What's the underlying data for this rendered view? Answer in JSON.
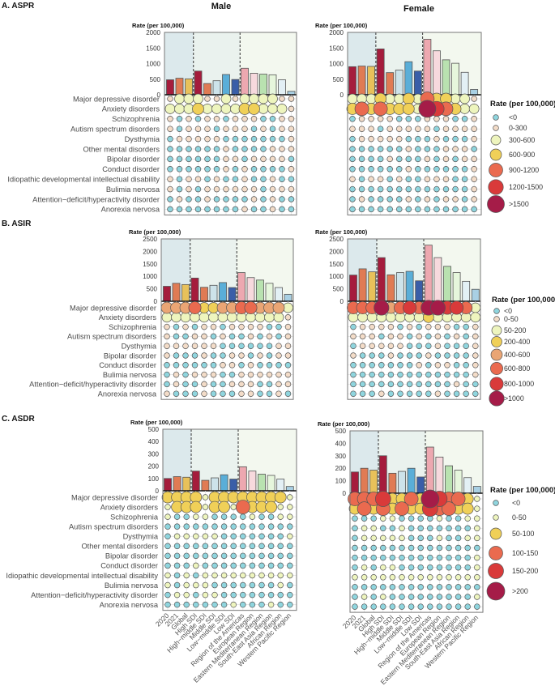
{
  "headers": {
    "male": "Male",
    "female": "Female"
  },
  "categories": [
    "2020",
    "2021",
    "Global",
    "High SDI",
    "High−middle SDI",
    "Middle SDI",
    "Low−middle SDI",
    "Low SDI",
    "Region of the Americas",
    "European Region",
    "Eastern Mediterranean Region",
    "South-East Asia Region",
    "African Region",
    "Western Pacific Region"
  ],
  "bar_colors": [
    "#a51c3c",
    "#e07b54",
    "#e8c15a",
    "#a51c3c",
    "#e07b54",
    "#cde3ea",
    "#5aaed8",
    "#3a5ea8",
    "#eda8b0",
    "#f7d9dd",
    "#b9e2b0",
    "#e6f6dc",
    "#e3f0f5",
    "#a9d0e4"
  ],
  "group_backgrounds": [
    "#dce9ec",
    "#eaf2ee",
    "#f3f8ef"
  ],
  "panels": [
    {
      "title": "A. ASPR",
      "ylabel": "Rate (per 100,000)",
      "ylim": [
        0,
        2000
      ],
      "yticks": [
        "0",
        "500",
        "1000",
        "1500",
        "2000"
      ],
      "rows": [
        "Major depressive disorder",
        "Anxiety disorders",
        "Schizophrenia",
        "Autism spectrum disorders",
        "Dysthymia",
        "Other mental disorders",
        "Bipolar disorder",
        "Conduct disorder",
        "Idiopathic developmental intellectual disability",
        "Bulimia nervosa",
        "Attention−deficit/hyperactivity disorder",
        "Anorexia nervosa"
      ],
      "legend_title": "Rate (per 100,000)",
      "legend": [
        "<0",
        "0-300",
        "300-600",
        "600-900",
        "900-1200",
        "1200-1500",
        ">1500"
      ],
      "legend_colors": [
        "#8fd5de",
        "#f3dcc8",
        "#eef5be",
        "#f0d058",
        "#ea6a4f",
        "#d93a3a",
        "#a51c48"
      ]
    },
    {
      "title": "B. ASIR",
      "ylabel": "Rate (per 100,000)",
      "ylim": [
        0,
        2500
      ],
      "yticks": [
        "0",
        "500",
        "1000",
        "1500",
        "2000",
        "2500"
      ],
      "rows": [
        "Major depressive disorder",
        "Anxiety disorders",
        "Schizophrenia",
        "Autism spectrum disorders",
        "Dysthymia",
        "Bipolar disorder",
        "Conduct disorder",
        "Bulimia nervosa",
        "Attention−deficit/hyperactivity disorder",
        "Anorexia nervosa"
      ],
      "legend_title": "Rate (per 100,000)",
      "legend": [
        "<0",
        "0-50",
        "50-200",
        "200-400",
        "400-600",
        "600-800",
        "800-1000",
        ">1000"
      ],
      "legend_colors": [
        "#8fd5de",
        "#f3dcc8",
        "#eef5be",
        "#f0d058",
        "#eaa574",
        "#ea6a4f",
        "#d93a3a",
        "#a51c48"
      ]
    },
    {
      "title": "C. ASDR",
      "ylabel": "Rate (per 100,000)",
      "ylim": [
        0,
        500
      ],
      "yticks": [
        "0",
        "100",
        "200",
        "300",
        "400",
        "500"
      ],
      "rows": [
        "Major depressive disorder",
        "Anxiety disorders",
        "Schizophrenia",
        "Autism spectrum disorders",
        "Dysthymia",
        "Other mental disorders",
        "Bipolar disorder",
        "Conduct disorder",
        "Idiopathic developmental intellectual disability",
        "Bulimia nervosa",
        "Attention−deficit/hyperactivity disorder",
        "Anorexia nervosa"
      ],
      "legend_title": "Rate (per 100,000)",
      "legend": [
        "<0",
        "0-50",
        "50-100",
        "100-150",
        "150-200",
        ">200"
      ],
      "legend_colors": [
        "#8fd5de",
        "#eef5be",
        "#f0d058",
        "#ea6a4f",
        "#d93a3a",
        "#a51c48"
      ]
    }
  ],
  "chart_data": [
    {
      "type": "bar",
      "panel": "A. ASPR",
      "sex": "Male",
      "ylabel": "Rate (per 100,000)",
      "ylim": [
        0,
        2000
      ],
      "values": [
        480,
        530,
        510,
        760,
        360,
        450,
        650,
        490,
        850,
        690,
        660,
        640,
        480,
        110
      ],
      "dot_bins": [
        [
          1,
          2,
          2,
          2,
          1,
          1,
          2,
          1,
          2,
          2,
          2,
          2,
          1,
          1
        ],
        [
          2,
          2,
          2,
          3,
          2,
          2,
          2,
          2,
          3,
          3,
          2,
          2,
          2,
          1
        ],
        [
          1,
          0,
          1,
          0,
          1,
          1,
          0,
          1,
          1,
          1,
          0,
          0,
          1,
          1
        ],
        [
          1,
          0,
          1,
          1,
          1,
          0,
          1,
          1,
          1,
          0,
          1,
          0,
          1,
          1
        ],
        [
          0,
          1,
          1,
          1,
          1,
          1,
          0,
          0,
          0,
          0,
          0,
          0,
          0,
          1
        ],
        [
          0,
          0,
          0,
          0,
          0,
          0,
          1,
          0,
          0,
          0,
          0,
          1,
          1,
          1
        ],
        [
          0,
          0,
          0,
          0,
          0,
          0,
          1,
          1,
          0,
          1,
          1,
          1,
          1,
          0
        ],
        [
          0,
          0,
          0,
          0,
          0,
          0,
          1,
          0,
          1,
          0,
          0,
          0,
          0,
          1
        ],
        [
          1,
          0,
          1,
          1,
          0,
          1,
          0,
          0,
          1,
          0,
          0,
          1,
          0,
          0
        ],
        [
          1,
          0,
          1,
          0,
          1,
          1,
          1,
          1,
          1,
          1,
          0,
          1,
          1,
          1
        ],
        [
          0,
          1,
          0,
          0,
          1,
          0,
          0,
          0,
          0,
          1,
          0,
          1,
          0,
          0
        ],
        [
          0,
          0,
          0,
          0,
          0,
          0,
          0,
          0,
          1,
          0,
          0,
          1,
          0,
          0
        ]
      ]
    },
    {
      "type": "bar",
      "panel": "A. ASPR",
      "sex": "Female",
      "ylabel": "Rate (per 100,000)",
      "ylim": [
        0,
        2000
      ],
      "values": [
        900,
        920,
        910,
        1470,
        710,
        790,
        1060,
        760,
        1780,
        1410,
        1120,
        1010,
        720,
        170
      ],
      "dot_bins": [
        [
          2,
          2,
          2,
          3,
          2,
          2,
          3,
          2,
          4,
          3,
          3,
          2,
          2,
          1
        ],
        [
          3,
          4,
          3,
          4,
          3,
          3,
          3,
          2,
          6,
          5,
          4,
          3,
          2,
          2
        ],
        [
          0,
          1,
          1,
          1,
          1,
          0,
          0,
          0,
          1,
          1,
          1,
          0,
          0,
          1
        ],
        [
          1,
          1,
          1,
          0,
          1,
          1,
          1,
          1,
          1,
          0,
          1,
          1,
          1,
          1
        ],
        [
          0,
          1,
          1,
          1,
          1,
          1,
          0,
          0,
          0,
          1,
          0,
          0,
          0,
          1
        ],
        [
          0,
          0,
          0,
          0,
          0,
          0,
          1,
          0,
          0,
          0,
          1,
          1,
          1,
          0
        ],
        [
          0,
          0,
          0,
          0,
          1,
          0,
          0,
          0,
          1,
          0,
          1,
          0,
          1,
          1
        ],
        [
          0,
          0,
          0,
          0,
          0,
          0,
          1,
          0,
          0,
          0,
          0,
          0,
          0,
          1
        ],
        [
          1,
          0,
          1,
          1,
          0,
          1,
          0,
          0,
          1,
          1,
          1,
          0,
          0,
          1
        ],
        [
          0,
          0,
          0,
          0,
          0,
          0,
          0,
          0,
          0,
          0,
          0,
          0,
          0,
          1
        ],
        [
          0,
          1,
          0,
          0,
          0,
          0,
          1,
          0,
          1,
          0,
          1,
          1,
          0,
          1
        ],
        [
          0,
          0,
          0,
          0,
          0,
          0,
          0,
          0,
          0,
          0,
          0,
          0,
          0,
          0
        ]
      ]
    },
    {
      "type": "bar",
      "panel": "B. ASIR",
      "sex": "Male",
      "ylabel": "Rate (per 100,000)",
      "ylim": [
        0,
        2500
      ],
      "values": [
        600,
        720,
        670,
        930,
        560,
        640,
        750,
        550,
        1150,
        950,
        850,
        720,
        550,
        280
      ],
      "dot_bins": [
        [
          4,
          4,
          4,
          5,
          3,
          3,
          4,
          4,
          5,
          5,
          4,
          4,
          4,
          2
        ],
        [
          2,
          2,
          2,
          2,
          2,
          2,
          2,
          2,
          2,
          2,
          2,
          2,
          2,
          1
        ],
        [
          1,
          0,
          1,
          0,
          1,
          1,
          0,
          1,
          1,
          1,
          1,
          0,
          0,
          1
        ],
        [
          1,
          0,
          0,
          1,
          1,
          0,
          1,
          0,
          0,
          1,
          0,
          1,
          0,
          1
        ],
        [
          1,
          1,
          1,
          1,
          1,
          1,
          0,
          0,
          0,
          0,
          0,
          0,
          1,
          1
        ],
        [
          1,
          0,
          0,
          0,
          1,
          0,
          0,
          1,
          1,
          0,
          1,
          0,
          1,
          1
        ],
        [
          0,
          0,
          0,
          0,
          0,
          0,
          1,
          1,
          0,
          1,
          0,
          0,
          0,
          0
        ],
        [
          0,
          1,
          0,
          1,
          1,
          1,
          0,
          0,
          1,
          1,
          1,
          1,
          1,
          1
        ],
        [
          0,
          1,
          0,
          0,
          1,
          0,
          0,
          1,
          1,
          1,
          0,
          0,
          1,
          1
        ],
        [
          1,
          0,
          0,
          0,
          1,
          0,
          0,
          0,
          1,
          1,
          0,
          0,
          1,
          0
        ]
      ]
    },
    {
      "type": "bar",
      "panel": "B. ASIR",
      "sex": "Female",
      "ylabel": "Rate (per 100,000)",
      "ylim": [
        0,
        2500
      ],
      "values": [
        1050,
        1300,
        1180,
        1750,
        1060,
        1150,
        1200,
        820,
        2250,
        1750,
        1400,
        1150,
        800,
        480
      ],
      "dot_bins": [
        [
          5,
          5,
          5,
          7,
          4,
          5,
          6,
          5,
          7,
          7,
          6,
          6,
          5,
          2
        ],
        [
          2,
          2,
          2,
          2,
          2,
          2,
          2,
          2,
          3,
          2,
          2,
          2,
          2,
          2
        ],
        [
          0,
          1,
          1,
          1,
          1,
          0,
          1,
          0,
          1,
          1,
          1,
          0,
          0,
          1
        ],
        [
          1,
          1,
          1,
          0,
          1,
          1,
          0,
          1,
          0,
          1,
          0,
          1,
          0,
          1
        ],
        [
          0,
          1,
          1,
          1,
          1,
          1,
          0,
          0,
          0,
          1,
          0,
          0,
          0,
          1
        ],
        [
          1,
          0,
          0,
          0,
          1,
          0,
          0,
          0,
          1,
          0,
          0,
          0,
          0,
          1
        ],
        [
          0,
          0,
          0,
          0,
          0,
          0,
          0,
          1,
          0,
          1,
          1,
          0,
          0,
          1
        ],
        [
          0,
          0,
          0,
          0,
          0,
          0,
          0,
          0,
          0,
          0,
          0,
          0,
          0,
          1
        ],
        [
          0,
          0,
          0,
          0,
          0,
          0,
          0,
          0,
          0,
          0,
          0,
          1,
          0,
          0
        ],
        [
          0,
          0,
          0,
          1,
          0,
          0,
          0,
          0,
          0,
          1,
          0,
          0,
          0,
          0
        ]
      ]
    },
    {
      "type": "bar",
      "panel": "C. ASDR",
      "sex": "Male",
      "ylabel": "Rate (per 100,000)",
      "ylim": [
        0,
        500
      ],
      "values": [
        100,
        115,
        110,
        160,
        85,
        105,
        130,
        95,
        195,
        160,
        135,
        125,
        95,
        35
      ],
      "dot_bins": [
        [
          2,
          2,
          2,
          2,
          1,
          2,
          2,
          2,
          2,
          2,
          2,
          2,
          2,
          1
        ],
        [
          1,
          2,
          2,
          2,
          1,
          2,
          2,
          1,
          3,
          2,
          2,
          2,
          1,
          1
        ],
        [
          1,
          0,
          0,
          1,
          1,
          0,
          0,
          0,
          0,
          1,
          0,
          0,
          1,
          1
        ],
        [
          0,
          0,
          0,
          0,
          0,
          0,
          0,
          0,
          0,
          0,
          0,
          0,
          0,
          0
        ],
        [
          0,
          1,
          1,
          1,
          1,
          1,
          0,
          0,
          0,
          0,
          0,
          0,
          0,
          1
        ],
        [
          0,
          0,
          0,
          0,
          0,
          0,
          0,
          0,
          0,
          0,
          0,
          0,
          0,
          0
        ],
        [
          0,
          0,
          0,
          0,
          0,
          0,
          0,
          0,
          0,
          0,
          0,
          0,
          0,
          0
        ],
        [
          0,
          0,
          0,
          1,
          0,
          0,
          0,
          0,
          0,
          0,
          0,
          0,
          0,
          0
        ],
        [
          1,
          0,
          1,
          0,
          1,
          1,
          1,
          1,
          1,
          1,
          1,
          1,
          1,
          1
        ],
        [
          1,
          0,
          1,
          1,
          1,
          0,
          0,
          0,
          0,
          0,
          0,
          0,
          1,
          0
        ],
        [
          0,
          1,
          1,
          0,
          1,
          1,
          0,
          0,
          0,
          0,
          0,
          0,
          0,
          0
        ],
        [
          0,
          0,
          0,
          0,
          0,
          0,
          0,
          1,
          0,
          0,
          0,
          1,
          0,
          0
        ]
      ]
    },
    {
      "type": "bar",
      "panel": "C. ASDR",
      "sex": "Female",
      "ylabel": "Rate (per 100,000)",
      "ylim": [
        0,
        500
      ],
      "values": [
        170,
        200,
        185,
        300,
        160,
        175,
        200,
        130,
        370,
        290,
        220,
        185,
        125,
        55
      ],
      "dot_bins": [
        [
          3,
          3,
          3,
          4,
          2,
          2,
          3,
          2,
          5,
          4,
          3,
          3,
          2,
          1
        ],
        [
          2,
          3,
          2,
          3,
          2,
          3,
          2,
          2,
          4,
          3,
          3,
          2,
          2,
          1
        ],
        [
          0,
          0,
          0,
          1,
          1,
          0,
          0,
          0,
          0,
          1,
          0,
          0,
          1,
          1
        ],
        [
          0,
          1,
          1,
          0,
          0,
          1,
          0,
          0,
          0,
          0,
          0,
          0,
          0,
          1
        ],
        [
          0,
          1,
          1,
          1,
          1,
          1,
          0,
          0,
          0,
          1,
          0,
          0,
          1,
          1
        ],
        [
          0,
          0,
          0,
          0,
          0,
          0,
          0,
          0,
          0,
          0,
          0,
          0,
          0,
          0
        ],
        [
          0,
          0,
          0,
          0,
          0,
          0,
          0,
          0,
          0,
          0,
          0,
          0,
          0,
          1
        ],
        [
          0,
          1,
          0,
          1,
          1,
          0,
          0,
          0,
          0,
          0,
          0,
          0,
          0,
          1
        ],
        [
          1,
          1,
          1,
          1,
          1,
          1,
          1,
          1,
          1,
          1,
          1,
          1,
          1,
          1
        ],
        [
          0,
          0,
          0,
          0,
          0,
          0,
          0,
          0,
          0,
          0,
          0,
          0,
          0,
          0
        ],
        [
          0,
          1,
          0,
          1,
          0,
          0,
          0,
          0,
          0,
          0,
          0,
          0,
          0,
          1
        ],
        [
          0,
          0,
          0,
          0,
          0,
          0,
          0,
          0,
          0,
          0,
          0,
          0,
          0,
          0
        ]
      ]
    }
  ]
}
